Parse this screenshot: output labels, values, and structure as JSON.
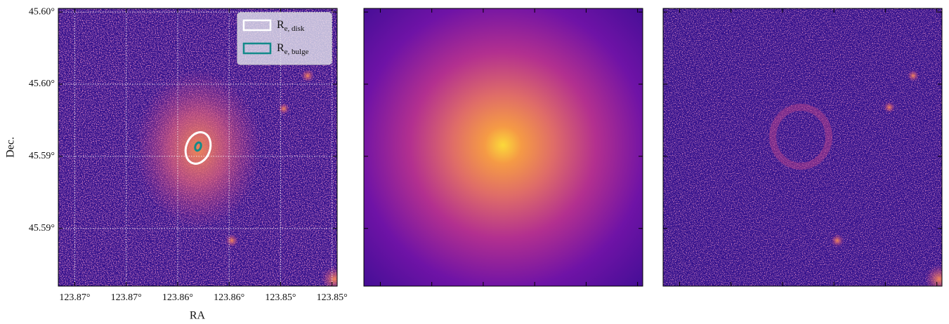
{
  "chart_data": {
    "type": "image",
    "xlabel": "RA",
    "ylabel": "Dec.",
    "xlim": [
      123.8761,
      123.849
    ],
    "ylim": [
      45.5909,
      45.5986
    ],
    "xticks": [
      {
        "value": 123.8745,
        "label": "123.87°"
      },
      {
        "value": 123.8695,
        "label": "123.87°"
      },
      {
        "value": 123.8645,
        "label": "123.86°"
      },
      {
        "value": 123.8595,
        "label": "123.86°"
      },
      {
        "value": 123.8545,
        "label": "123.85°"
      },
      {
        "value": 123.8495,
        "label": "123.85°"
      }
    ],
    "yticks": [
      {
        "value": 45.5985,
        "label": "45.60°"
      },
      {
        "value": 45.5965,
        "label": "45.60°"
      },
      {
        "value": 45.5945,
        "label": "45.59°"
      },
      {
        "value": 45.5925,
        "label": "45.59°"
      }
    ],
    "grid": true,
    "colormap": "plasma",
    "legend": "upper right",
    "series": [
      {
        "label": "R",
        "subscript": "e, disk",
        "color": "#ffffff"
      },
      {
        "label": "R",
        "subscript": "e, bulge",
        "color": "#138a8a"
      }
    ]
  }
}
